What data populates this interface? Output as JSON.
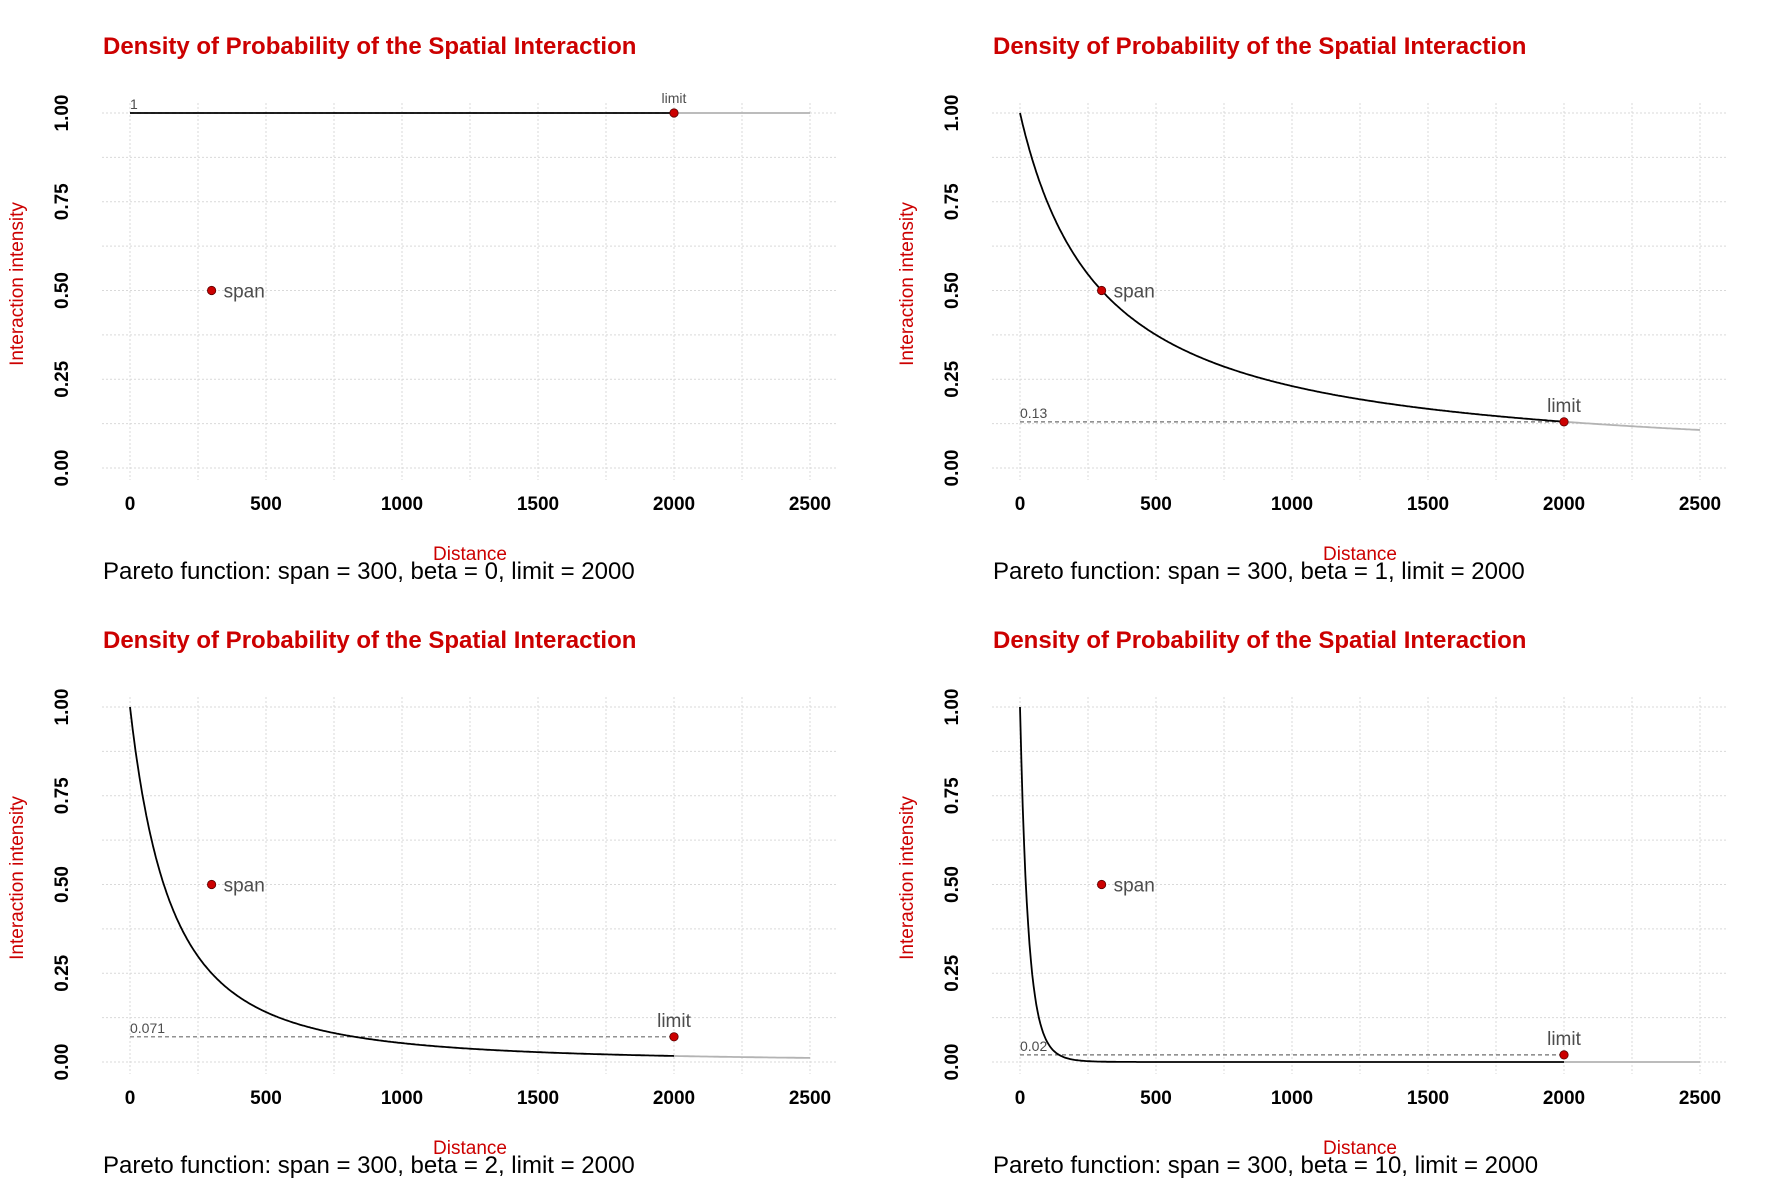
{
  "colors": {
    "title": "#cc0000",
    "axis_label": "#cc0000",
    "curve": "#000000",
    "curve_beyond_limit": "#b3b3b3",
    "marker": "#cc0000",
    "grid": "#d9d9d9",
    "annotation": "#4d4d4d"
  },
  "chart_data": [
    {
      "type": "line",
      "title": "Density of Probability of the Spatial Interaction",
      "caption": "Pareto function: span = 300, beta = 0, limit = 2000",
      "xlabel": "Distance",
      "ylabel": "Interaction intensity",
      "xlim": [
        0,
        2500
      ],
      "ylim": [
        0,
        1
      ],
      "xticks": [
        "0",
        "500",
        "1000",
        "1500",
        "2000",
        "2500"
      ],
      "yticks": [
        "0.00",
        "0.25",
        "0.50",
        "0.75",
        "1.00"
      ],
      "grid": true,
      "params": {
        "span": 300,
        "beta": 0,
        "limit": 2000
      },
      "points": [
        {
          "label": "span",
          "x": 300,
          "y": 0.5
        },
        {
          "label": "limit",
          "x": 2000,
          "y": 1.0
        }
      ],
      "limit_value_label": "1"
    },
    {
      "type": "line",
      "title": "Density of Probability of the Spatial Interaction",
      "caption": "Pareto function: span = 300, beta = 1, limit = 2000",
      "xlabel": "Distance",
      "ylabel": "Interaction intensity",
      "xlim": [
        0,
        2500
      ],
      "ylim": [
        0,
        1
      ],
      "xticks": [
        "0",
        "500",
        "1000",
        "1500",
        "2000",
        "2500"
      ],
      "yticks": [
        "0.00",
        "0.25",
        "0.50",
        "0.75",
        "1.00"
      ],
      "grid": true,
      "params": {
        "span": 300,
        "beta": 1,
        "limit": 2000
      },
      "points": [
        {
          "label": "span",
          "x": 300,
          "y": 0.5
        },
        {
          "label": "limit",
          "x": 2000,
          "y": 0.13
        }
      ],
      "limit_value_label": "0.13"
    },
    {
      "type": "line",
      "title": "Density of Probability of the Spatial Interaction",
      "caption": "Pareto function: span = 300, beta = 2, limit = 2000",
      "xlabel": "Distance",
      "ylabel": "Interaction intensity",
      "xlim": [
        0,
        2500
      ],
      "ylim": [
        0,
        1
      ],
      "xticks": [
        "0",
        "500",
        "1000",
        "1500",
        "2000",
        "2500"
      ],
      "yticks": [
        "0.00",
        "0.25",
        "0.50",
        "0.75",
        "1.00"
      ],
      "grid": true,
      "params": {
        "span": 300,
        "beta": 2,
        "limit": 2000
      },
      "points": [
        {
          "label": "span",
          "x": 300,
          "y": 0.5
        },
        {
          "label": "limit",
          "x": 2000,
          "y": 0.071
        }
      ],
      "limit_value_label": "0.071"
    },
    {
      "type": "line",
      "title": "Density of Probability of the Spatial Interaction",
      "caption": "Pareto function: span = 300, beta = 10, limit = 2000",
      "xlabel": "Distance",
      "ylabel": "Interaction intensity",
      "xlim": [
        0,
        2500
      ],
      "ylim": [
        0,
        1
      ],
      "xticks": [
        "0",
        "500",
        "1000",
        "1500",
        "2000",
        "2500"
      ],
      "yticks": [
        "0.00",
        "0.25",
        "0.50",
        "0.75",
        "1.00"
      ],
      "grid": true,
      "params": {
        "span": 300,
        "beta": 10,
        "limit": 2000
      },
      "points": [
        {
          "label": "span",
          "x": 300,
          "y": 0.5
        },
        {
          "label": "limit",
          "x": 2000,
          "y": 0.02
        }
      ],
      "limit_value_label": "0.02"
    }
  ]
}
